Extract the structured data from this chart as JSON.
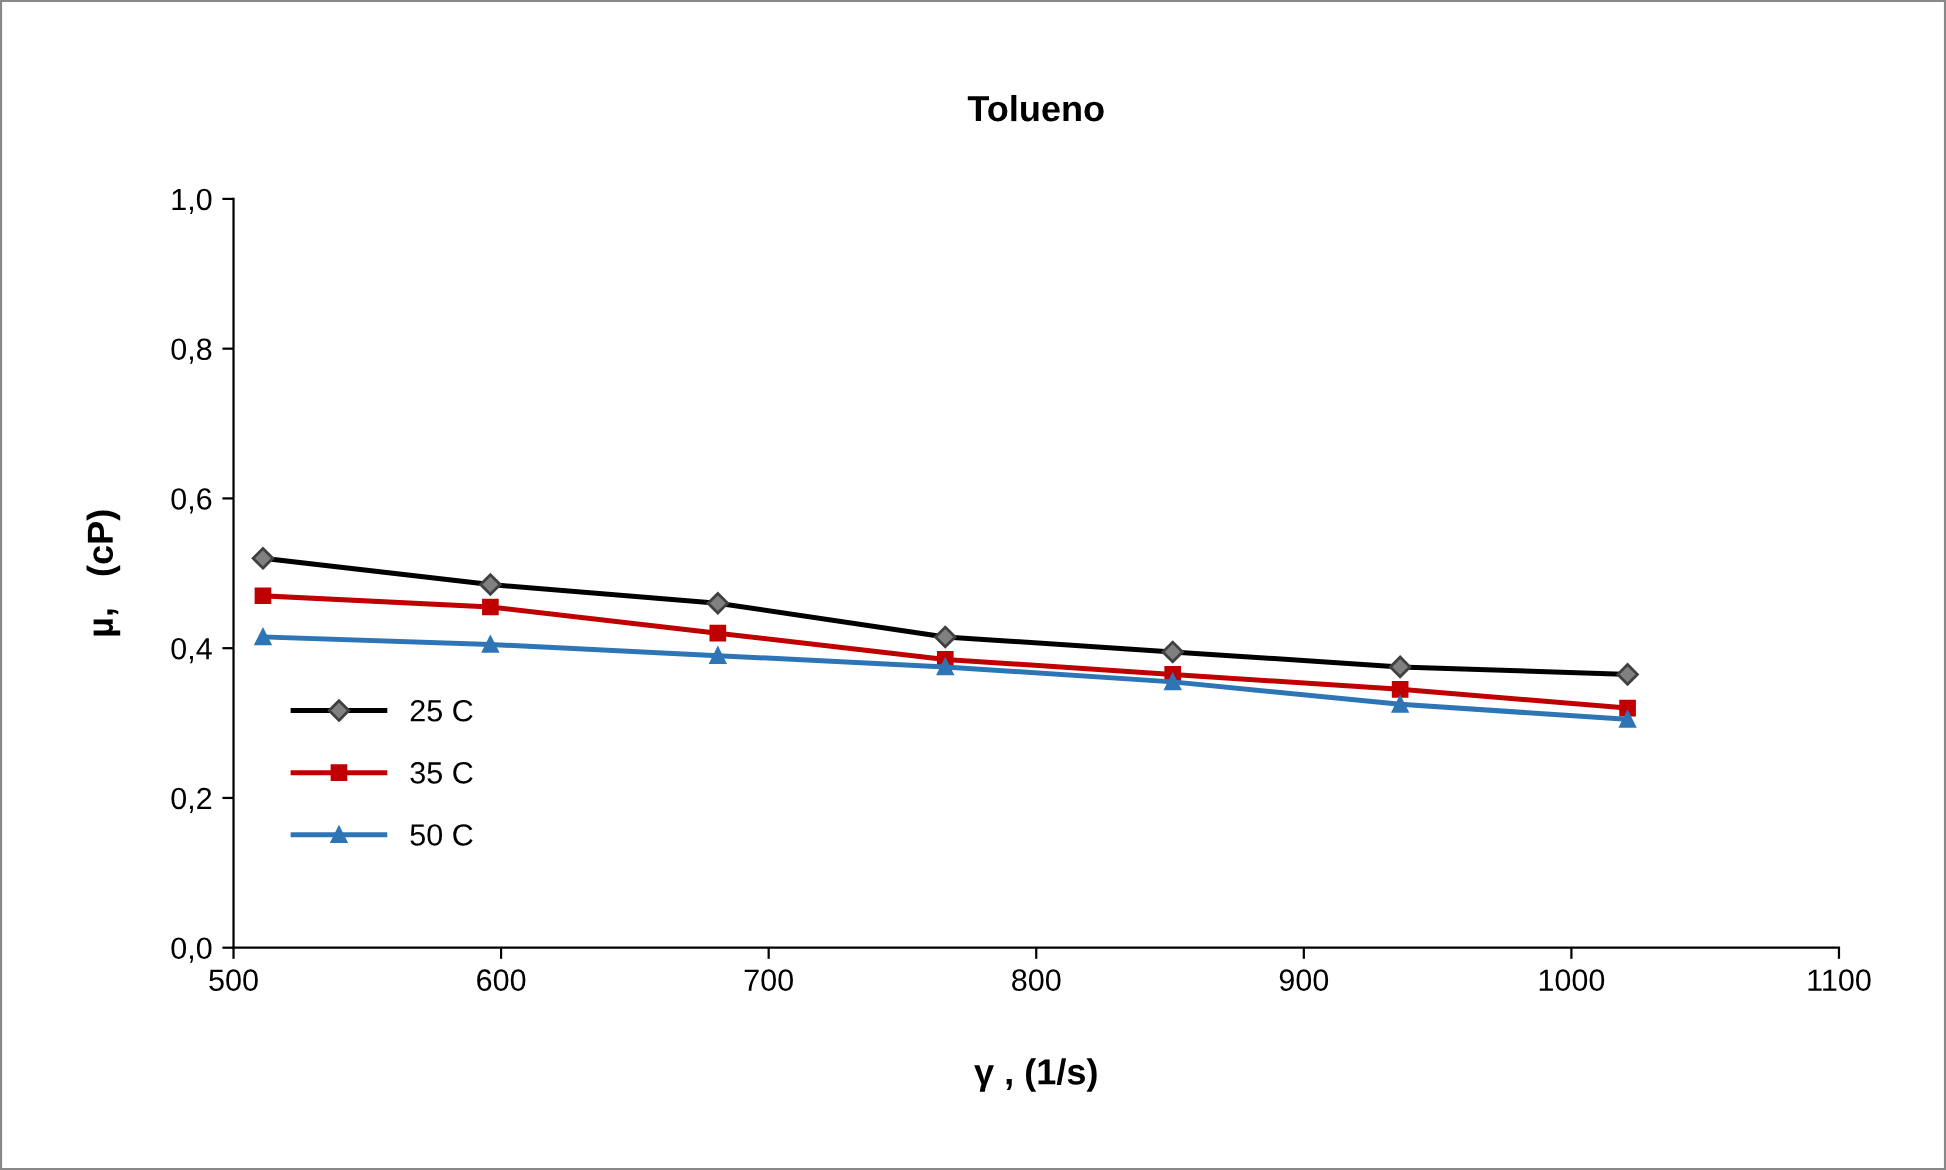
{
  "chart_data": {
    "type": "line",
    "title": "Tolueno",
    "xlabel": "γ , (1/s)",
    "ylabel": "µ,   (cP)",
    "x": [
      511,
      596,
      681,
      766,
      851,
      936,
      1021
    ],
    "series": [
      {
        "name": "25 C",
        "color": "#000000",
        "marker": "diamond",
        "values": [
          0.52,
          0.485,
          0.46,
          0.415,
          0.395,
          0.375,
          0.365
        ]
      },
      {
        "name": "35 C",
        "color": "#c00000",
        "marker": "square",
        "values": [
          0.47,
          0.455,
          0.42,
          0.385,
          0.365,
          0.345,
          0.32
        ]
      },
      {
        "name": "50 C",
        "color": "#2e75b6",
        "marker": "triangle",
        "values": [
          0.415,
          0.405,
          0.39,
          0.375,
          0.355,
          0.325,
          0.305
        ]
      }
    ],
    "xlim": [
      500,
      1100
    ],
    "xticks": [
      500,
      600,
      700,
      800,
      900,
      1000,
      1100
    ],
    "ylim": [
      0,
      1
    ],
    "yticks": [
      {
        "value": 0,
        "label": "0,0"
      },
      {
        "value": 0.2,
        "label": "0,2"
      },
      {
        "value": 0.4,
        "label": "0,4"
      },
      {
        "value": 0.6,
        "label": "0,6"
      },
      {
        "value": 0.8,
        "label": "0,8"
      },
      {
        "value": 1,
        "label": "1,0"
      }
    ],
    "grid": false,
    "legend": "left",
    "line_style": "solid"
  }
}
